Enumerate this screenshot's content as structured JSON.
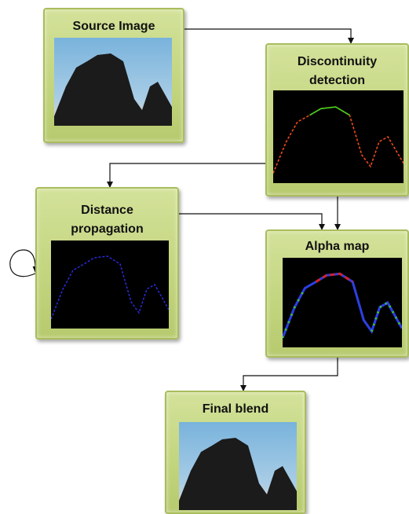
{
  "nodes": [
    {
      "lines": [
        "Source Image"
      ]
    },
    {
      "lines": [
        "Discontinuity",
        "detection"
      ]
    },
    {
      "lines": [
        "Distance",
        "propagation"
      ]
    },
    {
      "lines": [
        "Alpha map"
      ]
    },
    {
      "lines": [
        "Final blend"
      ]
    }
  ]
}
